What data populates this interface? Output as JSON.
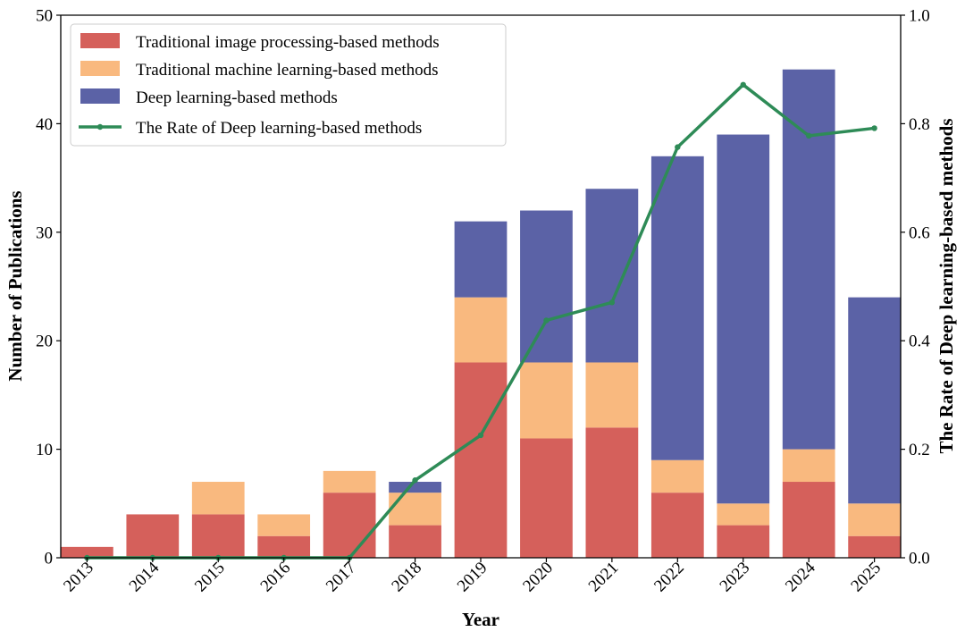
{
  "chart_data": {
    "type": "bar",
    "stacked": true,
    "categories": [
      "2013",
      "2014",
      "2015",
      "2016",
      "2017",
      "2018",
      "2019",
      "2020",
      "2021",
      "2022",
      "2023",
      "2024",
      "2025"
    ],
    "series": [
      {
        "name": "Traditional image processing-based methods",
        "color": "#d5605b",
        "values": [
          1,
          4,
          4,
          2,
          6,
          3,
          18,
          11,
          12,
          6,
          3,
          7,
          2
        ]
      },
      {
        "name": "Traditional machine learning-based methods",
        "color": "#f9b97f",
        "values": [
          0,
          0,
          3,
          2,
          2,
          3,
          6,
          7,
          6,
          3,
          2,
          3,
          3
        ]
      },
      {
        "name": "Deep learning-based methods",
        "color": "#5b62a6",
        "values": [
          0,
          0,
          0,
          0,
          0,
          1,
          7,
          14,
          16,
          28,
          34,
          35,
          19
        ]
      }
    ],
    "line_series": {
      "name": "The Rate of Deep learning-based methods",
      "color": "#2e8b57",
      "axis": "right",
      "values": [
        0,
        0,
        0,
        0,
        0,
        0.1429,
        0.2258,
        0.4375,
        0.4706,
        0.7568,
        0.8718,
        0.7778,
        0.7917
      ]
    },
    "xlabel": "Year",
    "ylabel": "Number of Publications",
    "y2label": "The Rate of Deep learning-based methods",
    "ylim": [
      0,
      50
    ],
    "y2lim": [
      0,
      1.0
    ],
    "yticks": [
      "0",
      "10",
      "20",
      "30",
      "40",
      "50"
    ],
    "y2ticks": [
      "0.0",
      "0.2",
      "0.4",
      "0.6",
      "0.8",
      "1.0"
    ],
    "legend_position": "top-left",
    "grid": false
  }
}
